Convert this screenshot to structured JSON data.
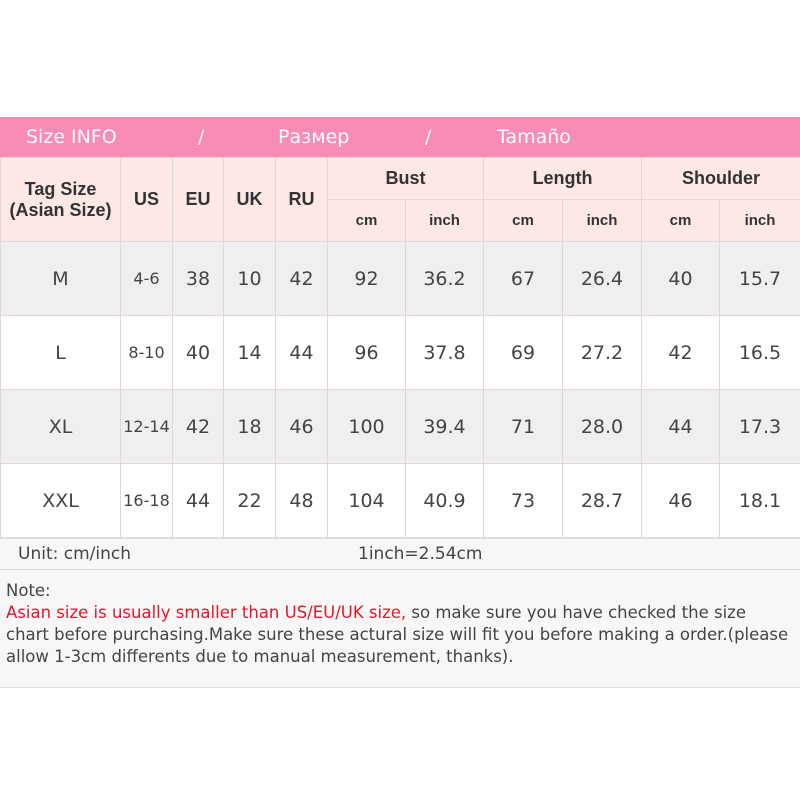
{
  "title": {
    "part1": "Size INFO",
    "sep1": "/",
    "part2": "Размер",
    "sep2": "/",
    "part3": "Tamaño"
  },
  "header": {
    "tag": "Tag Size",
    "tag2": "(Asian Size)",
    "us": "US",
    "eu": "EU",
    "uk": "UK",
    "ru": "RU",
    "bust": "Bust",
    "length": "Length",
    "shoulder": "Shoulder",
    "cm": "cm",
    "inch": "inch"
  },
  "rows": [
    {
      "tag": "M",
      "us": "4-6",
      "eu": "38",
      "uk": "10",
      "ru": "42",
      "bust_cm": "92",
      "bust_in": "36.2",
      "len_cm": "67",
      "len_in": "26.4",
      "sh_cm": "40",
      "sh_in": "15.7"
    },
    {
      "tag": "L",
      "us": "8-10",
      "eu": "40",
      "uk": "14",
      "ru": "44",
      "bust_cm": "96",
      "bust_in": "37.8",
      "len_cm": "69",
      "len_in": "27.2",
      "sh_cm": "42",
      "sh_in": "16.5"
    },
    {
      "tag": "XL",
      "us": "12-14",
      "eu": "42",
      "uk": "18",
      "ru": "46",
      "bust_cm": "100",
      "bust_in": "39.4",
      "len_cm": "71",
      "len_in": "28.0",
      "sh_cm": "44",
      "sh_in": "17.3"
    },
    {
      "tag": "XXL",
      "us": "16-18",
      "eu": "44",
      "uk": "22",
      "ru": "48",
      "bust_cm": "104",
      "bust_in": "40.9",
      "len_cm": "73",
      "len_in": "28.7",
      "sh_cm": "46",
      "sh_in": "18.1"
    }
  ],
  "unit": {
    "label": "Unit: cm/inch",
    "conversion": "1inch=2.54cm"
  },
  "note": {
    "heading": "Note:",
    "warning": "Asian size is usually smaller than US/EU/UK size,",
    "text": " so make sure you have checked the size chart before purchasing.Make sure these actural size will fit you before making a order.(please allow 1-3cm differents due to manual measurement, thanks)."
  },
  "colors": {
    "banner": "#f98cb4",
    "header_bg": "#fde8e6",
    "warning": "#e0182c"
  }
}
